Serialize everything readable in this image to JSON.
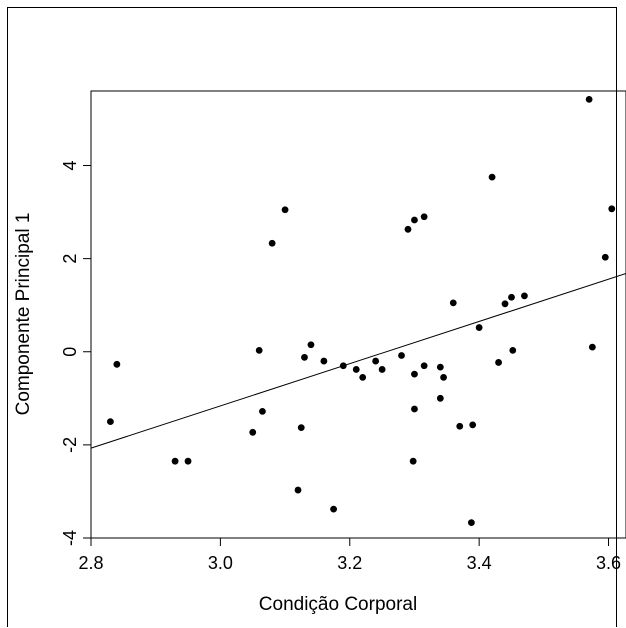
{
  "chart_data": {
    "type": "scatter",
    "title": "",
    "xlabel": "Condição Corporal",
    "ylabel": "Componente Principal 1",
    "xlim": [
      2.8,
      3.627
    ],
    "ylim": [
      -4.0,
      5.6
    ],
    "xticks": [
      2.8,
      3.0,
      3.2,
      3.4,
      3.6
    ],
    "xtick_labels": [
      "2.8",
      "3.0",
      "3.2",
      "3.4",
      "3.6"
    ],
    "yticks": [
      -4,
      -2,
      0,
      2,
      4
    ],
    "ytick_labels": [
      "-4",
      "-2",
      "0",
      "2",
      "4"
    ],
    "grid": false,
    "legend": "none",
    "points": [
      {
        "x": 2.83,
        "y": -1.5
      },
      {
        "x": 2.84,
        "y": -0.27
      },
      {
        "x": 2.93,
        "y": -2.35
      },
      {
        "x": 2.95,
        "y": -2.35
      },
      {
        "x": 3.05,
        "y": -1.73
      },
      {
        "x": 3.06,
        "y": 0.03
      },
      {
        "x": 3.065,
        "y": -1.28
      },
      {
        "x": 3.08,
        "y": 2.33
      },
      {
        "x": 3.1,
        "y": 3.05
      },
      {
        "x": 3.12,
        "y": -2.97
      },
      {
        "x": 3.125,
        "y": -1.63
      },
      {
        "x": 3.13,
        "y": -0.12
      },
      {
        "x": 3.14,
        "y": 0.15
      },
      {
        "x": 3.16,
        "y": -0.2
      },
      {
        "x": 3.175,
        "y": -3.38
      },
      {
        "x": 3.19,
        "y": -0.3
      },
      {
        "x": 3.21,
        "y": -0.38
      },
      {
        "x": 3.22,
        "y": -0.55
      },
      {
        "x": 3.24,
        "y": -0.2
      },
      {
        "x": 3.25,
        "y": -0.38
      },
      {
        "x": 3.28,
        "y": -0.08
      },
      {
        "x": 3.29,
        "y": 2.63
      },
      {
        "x": 3.3,
        "y": 2.83
      },
      {
        "x": 3.3,
        "y": -0.48
      },
      {
        "x": 3.3,
        "y": -1.23
      },
      {
        "x": 3.298,
        "y": -2.35
      },
      {
        "x": 3.315,
        "y": 2.9
      },
      {
        "x": 3.315,
        "y": -0.3
      },
      {
        "x": 3.34,
        "y": -0.33
      },
      {
        "x": 3.34,
        "y": -1.0
      },
      {
        "x": 3.345,
        "y": -0.55
      },
      {
        "x": 3.36,
        "y": 1.05
      },
      {
        "x": 3.37,
        "y": -1.6
      },
      {
        "x": 3.39,
        "y": -1.57
      },
      {
        "x": 3.388,
        "y": -3.67
      },
      {
        "x": 3.4,
        "y": 0.52
      },
      {
        "x": 3.42,
        "y": 3.75
      },
      {
        "x": 3.43,
        "y": -0.23
      },
      {
        "x": 3.44,
        "y": 1.03
      },
      {
        "x": 3.45,
        "y": 1.17
      },
      {
        "x": 3.452,
        "y": 0.03
      },
      {
        "x": 3.47,
        "y": 1.2
      },
      {
        "x": 3.57,
        "y": 5.42
      },
      {
        "x": 3.575,
        "y": 0.1
      },
      {
        "x": 3.595,
        "y": 2.03
      },
      {
        "x": 3.605,
        "y": 3.07
      }
    ],
    "fit_line": {
      "x": [
        2.8,
        3.627
      ],
      "y": [
        -2.07,
        1.68
      ]
    }
  }
}
